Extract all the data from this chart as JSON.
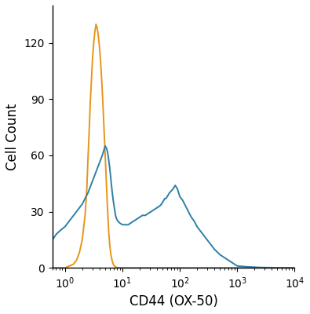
{
  "title": "",
  "xlabel": "CD44 (OX-50)",
  "ylabel": "Cell Count",
  "xlim": [
    0.6,
    10000
  ],
  "ylim": [
    0,
    140
  ],
  "yticks": [
    0,
    30,
    60,
    90,
    120
  ],
  "orange_color": "#E8951A",
  "blue_color": "#2E7FA8",
  "linewidth": 1.4,
  "orange_curve_log10x": [
    -0.22,
    -0.15,
    -0.08,
    0.0,
    0.08,
    0.15,
    0.2,
    0.25,
    0.3,
    0.35,
    0.38,
    0.4,
    0.42,
    0.44,
    0.46,
    0.48,
    0.5,
    0.52,
    0.54,
    0.56,
    0.58,
    0.6,
    0.62,
    0.64,
    0.66,
    0.68,
    0.7,
    0.72,
    0.74,
    0.76,
    0.78,
    0.8,
    0.82,
    0.84,
    0.86,
    0.88,
    0.9,
    0.93,
    0.96,
    1.0,
    1.05,
    1.1,
    1.2,
    1.4,
    1.6,
    1.8,
    2.0,
    2.5,
    3.0,
    3.5,
    4.0
  ],
  "orange_curve_y": [
    0,
    0,
    0,
    0,
    1,
    2,
    4,
    8,
    15,
    28,
    42,
    58,
    72,
    88,
    100,
    112,
    120,
    126,
    130,
    128,
    124,
    118,
    110,
    100,
    88,
    74,
    60,
    46,
    32,
    20,
    12,
    7,
    4,
    2,
    1,
    0.5,
    0.2,
    0.1,
    0,
    0,
    0,
    0,
    0,
    0,
    0,
    0,
    0,
    0,
    0,
    0,
    0
  ],
  "blue_curve_log10x": [
    -0.22,
    -0.15,
    -0.08,
    0.0,
    0.05,
    0.1,
    0.15,
    0.2,
    0.25,
    0.3,
    0.35,
    0.4,
    0.45,
    0.5,
    0.55,
    0.6,
    0.65,
    0.68,
    0.7,
    0.72,
    0.74,
    0.76,
    0.78,
    0.8,
    0.82,
    0.84,
    0.86,
    0.88,
    0.9,
    0.92,
    0.95,
    1.0,
    1.05,
    1.1,
    1.15,
    1.2,
    1.25,
    1.3,
    1.35,
    1.4,
    1.45,
    1.5,
    1.55,
    1.6,
    1.65,
    1.68,
    1.7,
    1.72,
    1.74,
    1.76,
    1.78,
    1.8,
    1.82,
    1.85,
    1.88,
    1.9,
    1.92,
    1.94,
    1.96,
    1.98,
    2.0,
    2.05,
    2.1,
    2.15,
    2.2,
    2.25,
    2.3,
    2.4,
    2.5,
    2.6,
    2.7,
    2.8,
    2.9,
    3.0,
    3.2,
    3.4,
    3.6,
    3.8,
    4.0
  ],
  "blue_curve_y": [
    15,
    18,
    20,
    22,
    24,
    26,
    28,
    30,
    32,
    34,
    37,
    40,
    44,
    48,
    52,
    56,
    60,
    63,
    65,
    64,
    62,
    58,
    53,
    47,
    41,
    36,
    32,
    28,
    26,
    25,
    24,
    23,
    23,
    23,
    24,
    25,
    26,
    27,
    28,
    28,
    29,
    30,
    31,
    32,
    33,
    34,
    35,
    36,
    37,
    37,
    38,
    39,
    40,
    41,
    42,
    43,
    44,
    43,
    42,
    40,
    38,
    36,
    33,
    30,
    27,
    25,
    22,
    18,
    14,
    10,
    7,
    5,
    3,
    1,
    0.5,
    0.2,
    0.1,
    0,
    0
  ]
}
